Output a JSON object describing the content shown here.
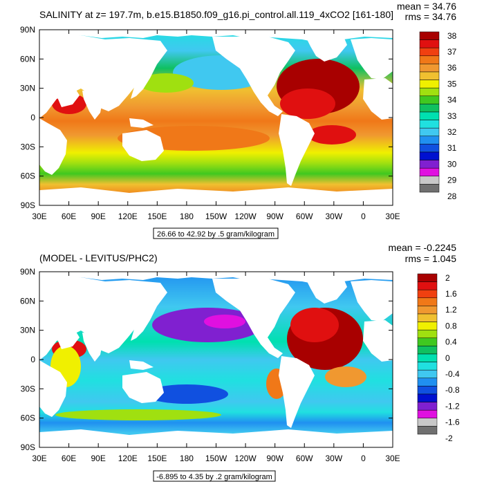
{
  "chart_data": [
    {
      "type": "heatmap",
      "title": "SALINITY at z= 197.7m, b.e15.B1850.f09_g16.pi_control.all.119_4xCO2 [161-180]",
      "stats": {
        "mean_label": "mean = 34.76",
        "rms_label": "rms = 34.76"
      },
      "xlabel": "",
      "ylabel": "",
      "x_ticks": [
        "30E",
        "60E",
        "90E",
        "120E",
        "150E",
        "180",
        "150W",
        "120W",
        "90W",
        "60W",
        "30W",
        "0",
        "30E"
      ],
      "y_ticks": [
        "90N",
        "60N",
        "30N",
        "0",
        "30S",
        "60S",
        "90S"
      ],
      "xlim": [
        30,
        390
      ],
      "ylim": [
        -90,
        90
      ],
      "range_label": "26.66 to 42.92 by .5 gram/kilogram",
      "colorbar": {
        "labels": [
          "38",
          "37",
          "36",
          "35",
          "34",
          "33",
          "32",
          "31",
          "30",
          "29",
          "28"
        ],
        "colors": [
          "#a80000",
          "#e01010",
          "#f04010",
          "#f07818",
          "#f09830",
          "#f0c030",
          "#f0f000",
          "#a0e010",
          "#40c820",
          "#10c060",
          "#00e0b0",
          "#20e0e0",
          "#40c8f0",
          "#2090f0",
          "#1050e0",
          "#0010d0",
          "#8020d0",
          "#e010e0",
          "#c8c8c8",
          "#707070"
        ]
      }
    },
    {
      "type": "heatmap",
      "title": "(MODEL - LEVITUS/PHC2)",
      "stats": {
        "mean_label": "mean = -0.2245",
        "rms_label": "rms = 1.045"
      },
      "xlabel": "",
      "ylabel": "",
      "x_ticks": [
        "30E",
        "60E",
        "90E",
        "120E",
        "150E",
        "180",
        "150W",
        "120W",
        "90W",
        "60W",
        "30W",
        "0",
        "30E"
      ],
      "y_ticks": [
        "90N",
        "60N",
        "30N",
        "0",
        "30S",
        "60S",
        "90S"
      ],
      "xlim": [
        30,
        390
      ],
      "ylim": [
        -90,
        90
      ],
      "range_label": "-6.895 to 4.35 by .2 gram/kilogram",
      "colorbar": {
        "labels": [
          "2",
          "1.6",
          "1.2",
          "0.8",
          "0.4",
          "0",
          "-0.4",
          "-0.8",
          "-1.2",
          "-1.6",
          "-2"
        ],
        "colors": [
          "#a80000",
          "#e01010",
          "#f04010",
          "#f07818",
          "#f09830",
          "#f0c030",
          "#f0f000",
          "#a0e010",
          "#40c820",
          "#10c060",
          "#00e0b0",
          "#20e0e0",
          "#40c8f0",
          "#2090f0",
          "#1050e0",
          "#0010d0",
          "#8020d0",
          "#e010e0",
          "#c8c8c8",
          "#707070"
        ]
      }
    }
  ]
}
